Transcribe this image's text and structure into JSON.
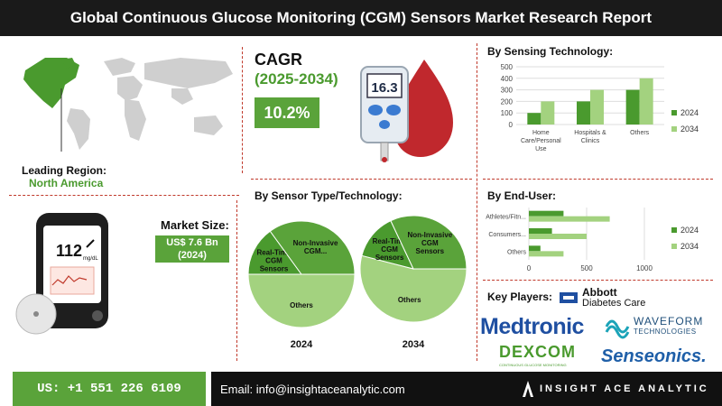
{
  "header": {
    "title": "Global Continuous Glucose Monitoring (CGM) Sensors Market Research Report"
  },
  "region": {
    "label": "Leading Region:",
    "value": "North America"
  },
  "cagr": {
    "label": "CAGR",
    "period": "(2025-2034)",
    "value": "10.2%"
  },
  "device_display": "16.3",
  "wearable": {
    "reading": "112",
    "unit": "mg/dL"
  },
  "market_size": {
    "label": "Market Size:",
    "value": "US$ 7.6 Bn",
    "year": "(2024)"
  },
  "colors": {
    "dark_green": "#4a9a2e",
    "light_green": "#a3d27f",
    "accent_red": "#c0392b"
  },
  "chart_data": [
    {
      "type": "bar",
      "title": "By Sensing Technology:",
      "categories": [
        "Home Care/Personal Use",
        "Hospitals & Clinics",
        "Others"
      ],
      "series": [
        {
          "name": "2024",
          "values": [
            100,
            200,
            300
          ]
        },
        {
          "name": "2034",
          "values": [
            200,
            300,
            400
          ]
        }
      ],
      "yticks": [
        "0",
        "100",
        "200",
        "300",
        "400",
        "500"
      ],
      "ylim": [
        0,
        500
      ],
      "legend": "right"
    },
    {
      "type": "bar",
      "orientation": "horizontal",
      "title": "By End-User:",
      "categories": [
        "Athletes/Fitn...",
        "Consumers...",
        "Others"
      ],
      "series": [
        {
          "name": "2024",
          "values": [
            300,
            200,
            100
          ]
        },
        {
          "name": "2034",
          "values": [
            700,
            500,
            300
          ]
        }
      ],
      "xticks": [
        "0",
        "500",
        "1000"
      ],
      "xlim": [
        0,
        1000
      ],
      "legend": "right"
    },
    {
      "type": "pie",
      "title": "By Sensor Type/Technology:",
      "charts": [
        {
          "year": "2024",
          "slices": [
            {
              "label": "Others",
              "value": 50
            },
            {
              "label": "Real-Time CGM Sensors",
              "value": 15
            },
            {
              "label": "Non-Invasive CGM...",
              "value": 35
            }
          ]
        },
        {
          "year": "2034",
          "slices": [
            {
              "label": "Others",
              "value": 54
            },
            {
              "label": "Real-Time CGM Sensors",
              "value": 14
            },
            {
              "label": "Non-Invasive CGM Sensors",
              "value": 32
            }
          ]
        }
      ]
    }
  ],
  "key_players": {
    "label": "Key Players:",
    "logos": {
      "abbott": {
        "name": "Abbott",
        "sub": "Diabetes Care"
      },
      "medtronic": "Medtronic",
      "waveform": {
        "name": "WAVEFORM",
        "sub": "TECHNOLOGIES"
      },
      "dexcom": {
        "name": "DEXCOM",
        "sub": "CONTINUOUS GLUCOSE MONITORING"
      },
      "senseonics": "Senseonics."
    }
  },
  "footer": {
    "phone": "US: +1 551 226 6109",
    "email": "Email: info@insightaceanalytic.com",
    "brand": "INSIGHT ACE ANALYTIC"
  }
}
